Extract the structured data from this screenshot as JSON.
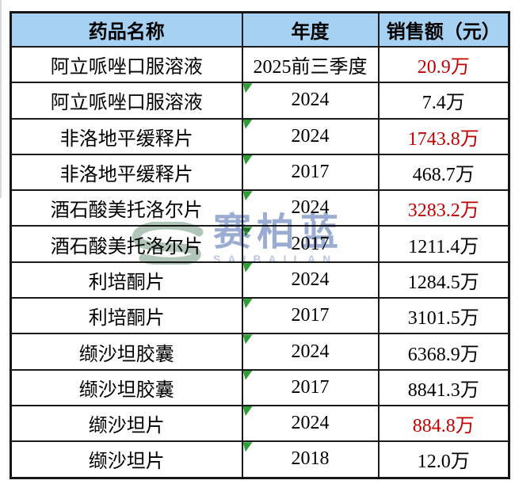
{
  "chart_data": {
    "type": "table",
    "title": "",
    "columns": [
      {
        "key": "drug",
        "label": "药品名称"
      },
      {
        "key": "year",
        "label": "年度"
      },
      {
        "key": "sales",
        "label": "销售额（元）"
      }
    ],
    "rows": [
      {
        "drug": "阿立哌唑口服溶液",
        "year": "2025前三季度",
        "sales": "20.9万",
        "highlight": true,
        "marker": false
      },
      {
        "drug": "阿立哌唑口服溶液",
        "year": "2024",
        "sales": "7.4万",
        "highlight": false,
        "marker": true
      },
      {
        "drug": "非洛地平缓释片",
        "year": "2024",
        "sales": "1743.8万",
        "highlight": true,
        "marker": true
      },
      {
        "drug": "非洛地平缓释片",
        "year": "2017",
        "sales": "468.7万",
        "highlight": false,
        "marker": true
      },
      {
        "drug": "酒石酸美托洛尔片",
        "year": "2024",
        "sales": "3283.2万",
        "highlight": true,
        "marker": true
      },
      {
        "drug": "酒石酸美托洛尔片",
        "year": "2017",
        "sales": "1211.4万",
        "highlight": false,
        "marker": true
      },
      {
        "drug": "利培酮片",
        "year": "2024",
        "sales": "1284.5万",
        "highlight": false,
        "marker": true
      },
      {
        "drug": "利培酮片",
        "year": "2017",
        "sales": "3101.5万",
        "highlight": false,
        "marker": true
      },
      {
        "drug": "缬沙坦胶囊",
        "year": "2024",
        "sales": "6368.9万",
        "highlight": false,
        "marker": true
      },
      {
        "drug": "缬沙坦胶囊",
        "year": "2017",
        "sales": "8841.3万",
        "highlight": false,
        "marker": true
      },
      {
        "drug": "缬沙坦片",
        "year": "2024",
        "sales": "884.8万",
        "highlight": true,
        "marker": true
      },
      {
        "drug": "缬沙坦片",
        "year": "2018",
        "sales": "12.0万",
        "highlight": false,
        "marker": true
      }
    ]
  },
  "watermark": {
    "text": "赛柏蓝",
    "subtext": "SAIBAILAN"
  },
  "colors": {
    "header_bg": "#A6D1F2",
    "border": "#1b1b1b",
    "highlight_text": "#C00000",
    "text": "#000000",
    "marker_green": "#2F9E38",
    "watermark_blue": "#4968AF",
    "watermark_teal": "#87A894"
  }
}
